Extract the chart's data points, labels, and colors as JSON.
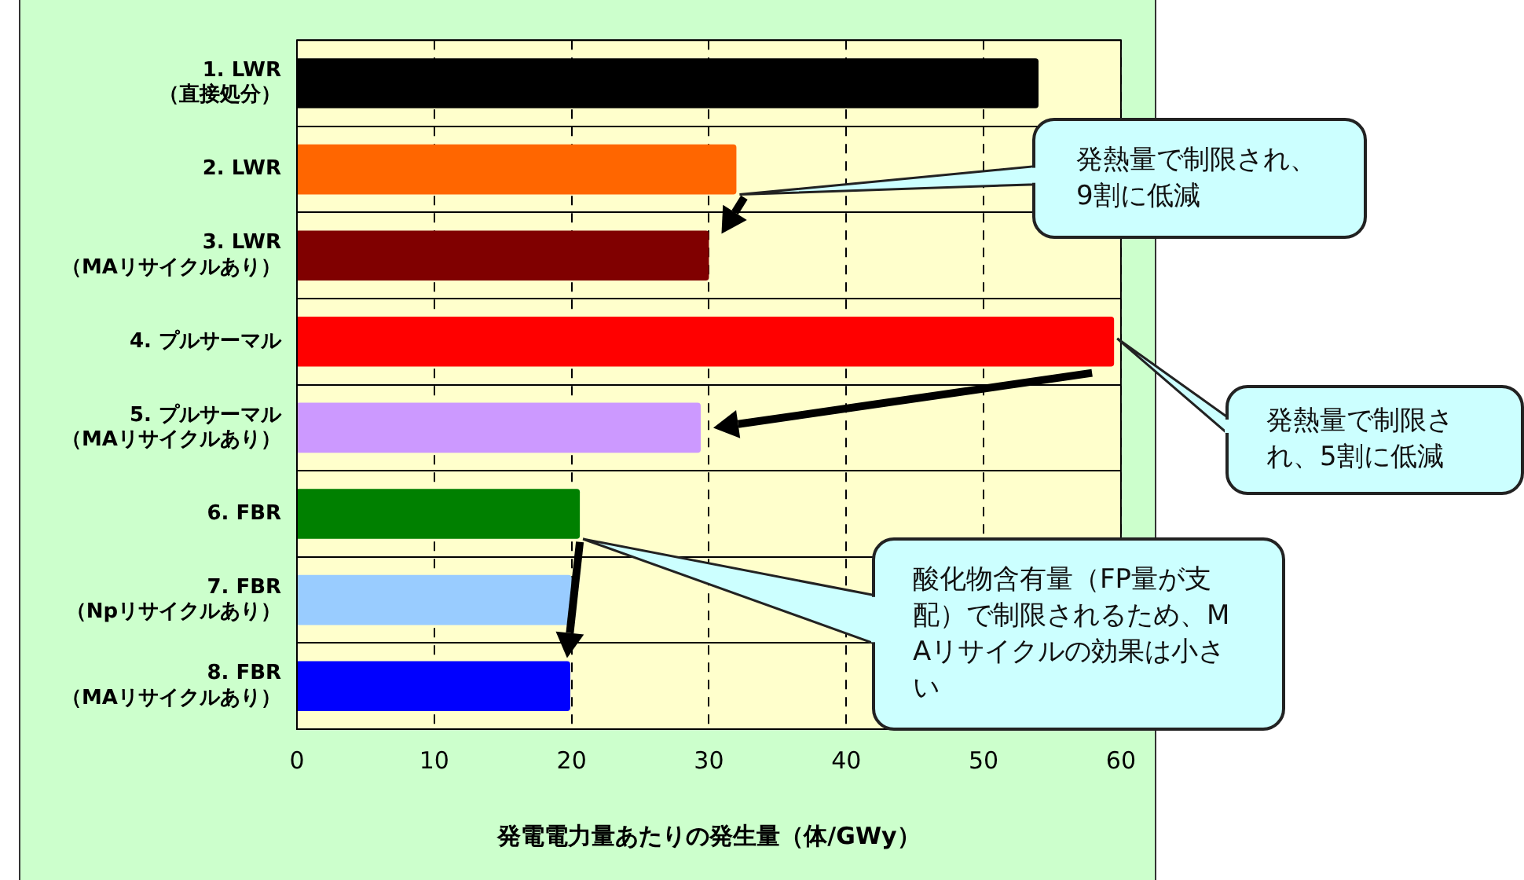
{
  "chart_data": {
    "type": "bar",
    "orientation": "horizontal",
    "categories": [
      "1. LWR（直接処分）",
      "2. LWR",
      "3. LWR（MAリサイクルあり）",
      "4. プルサーマル",
      "5. プルサーマル（MAリサイクルあり）",
      "6. FBR",
      "7. FBR（Npリサイクルあり）",
      "8. FBR（MAリサイクルあり）"
    ],
    "values": [
      54,
      32,
      30,
      59.5,
      29.4,
      20.6,
      20,
      19.9
    ],
    "colors": [
      "#000000",
      "#ff6600",
      "#800000",
      "#ff0000",
      "#cc99ff",
      "#008000",
      "#99ccff",
      "#0000ff"
    ],
    "xlim": [
      0,
      60
    ],
    "xticks": [
      0,
      10,
      20,
      30,
      40,
      50,
      60
    ],
    "xlabel": "発電電力量あたりの発生量（体/GWy）",
    "grid": true,
    "legend": false,
    "annotations": [
      "発熱量で制限され、9割に低減",
      "発熱量で制限され、5割に低減",
      "酸化物含有量（FP量が支配）で制限されるため、MAリサイクルの効果は小さい"
    ]
  }
}
